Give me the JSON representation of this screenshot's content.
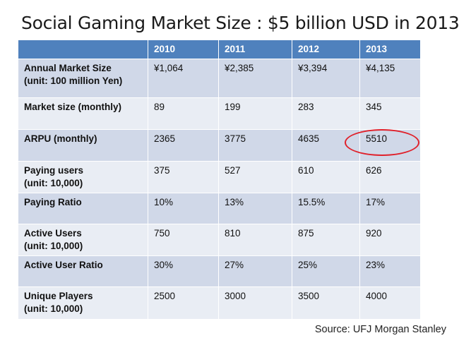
{
  "title": "Social Gaming Market Size : $5 billion USD in 2013",
  "table": {
    "headers": [
      "",
      "2010",
      "2011",
      "2012",
      "2013"
    ],
    "rows": [
      {
        "label_lines": [
          "Annual Market Size",
          "(unit: 100 million Yen)"
        ],
        "cells": [
          "¥1,064",
          "¥2,385",
          "¥3,394",
          "¥4,135"
        ]
      },
      {
        "label_lines": [
          "Market size (monthly)"
        ],
        "cells": [
          "89",
          "199",
          "283",
          "345"
        ]
      },
      {
        "label_lines": [
          "ARPU (monthly)"
        ],
        "cells": [
          "2365",
          "3775",
          "4635",
          "5510"
        ]
      },
      {
        "label_lines": [
          "Paying users",
          "(unit: 10,000)"
        ],
        "cells": [
          "375",
          "527",
          "610",
          "626"
        ]
      },
      {
        "label_lines": [
          "Paying Ratio"
        ],
        "cells": [
          "10%",
          "13%",
          "15.5%",
          "17%"
        ]
      },
      {
        "label_lines": [
          "Active Users",
          "(unit: 10,000)"
        ],
        "cells": [
          "750",
          "810",
          "875",
          "920"
        ]
      },
      {
        "label_lines": [
          "Active User Ratio"
        ],
        "cells": [
          "30%",
          "27%",
          "25%",
          "23%"
        ]
      },
      {
        "label_lines": [
          "Unique Players",
          "(unit: 10,000)"
        ],
        "cells": [
          "2500",
          "3000",
          "3500",
          "4000"
        ]
      }
    ]
  },
  "highlight": {
    "row": 2,
    "column": 4,
    "color": "#e0202a"
  },
  "source": "Source: UFJ Morgan Stanley",
  "colors": {
    "header": "#4f81bd",
    "band_dark": "#d0d8e8",
    "band_light": "#e9edf4"
  }
}
